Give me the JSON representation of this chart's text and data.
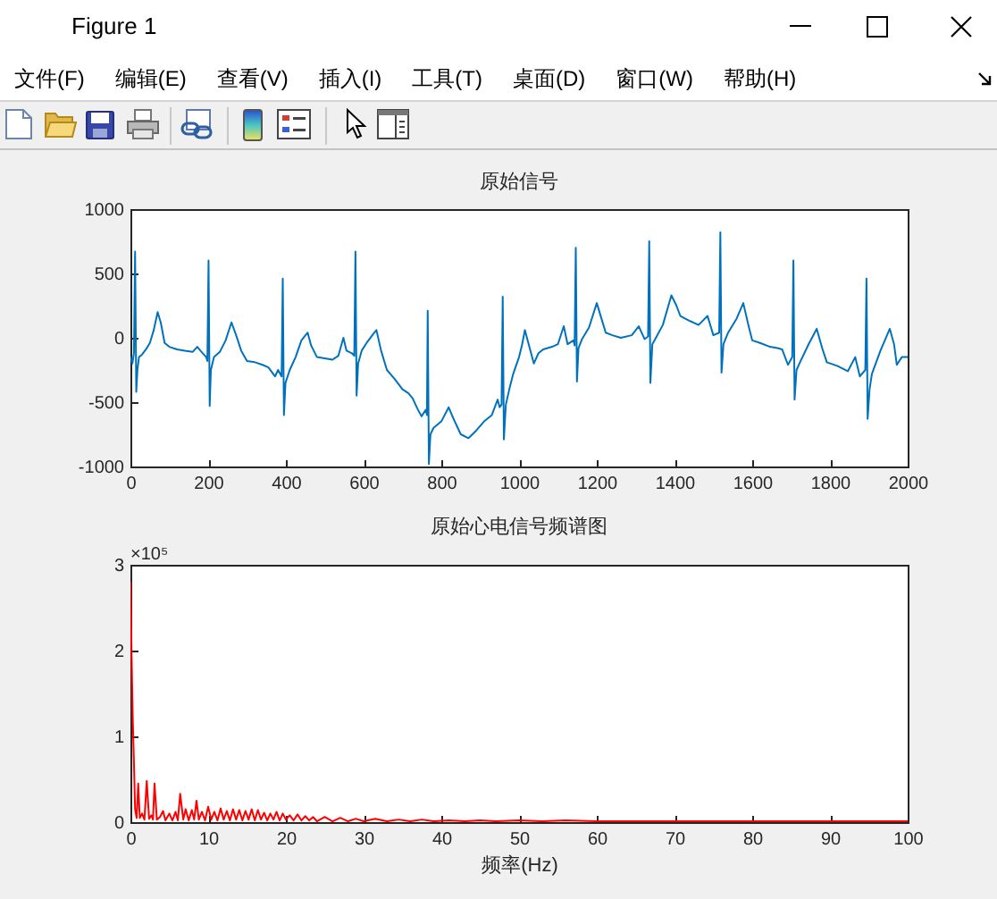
{
  "chart_data": [
    {
      "type": "other",
      "title": "Figure 1",
      "annotations": [
        "文件(F)",
        "编辑(E)",
        "查看(V)",
        "插入(I)",
        "工具(T)",
        "桌面(D)",
        "窗口(W)",
        "帮助(H)"
      ]
    },
    {
      "type": "line",
      "title": "原始信号",
      "x": [
        0,
        5,
        9,
        12,
        15,
        18,
        22,
        30,
        40,
        50,
        60,
        70,
        78,
        88,
        100,
        120,
        140,
        160,
        172,
        180,
        195,
        198,
        201,
        204,
        207,
        215,
        230,
        245,
        260,
        272,
        285,
        300,
        320,
        340,
        355,
        372,
        380,
        389,
        392,
        395,
        399,
        410,
        425,
        440,
        456,
        465,
        480,
        500,
        520,
        535,
        548,
        556,
        570,
        576,
        579,
        582,
        586,
        595,
        610,
        625,
        633,
        645,
        660,
        680,
        700,
        715,
        726,
        740,
        749,
        760,
        763,
        765,
        768,
        772,
        780,
        800,
        819,
        830,
        850,
        870,
        890,
        910,
        930,
        945,
        950,
        955,
        958,
        961,
        966,
        975,
        985,
        1000,
        1008,
        1015,
        1031,
        1038,
        1050,
        1062,
        1085,
        1100,
        1115,
        1125,
        1140,
        1143,
        1146,
        1149,
        1153,
        1162,
        1180,
        1200,
        1212,
        1223,
        1240,
        1262,
        1290,
        1308,
        1323,
        1332,
        1335,
        1338,
        1343,
        1354,
        1370,
        1392,
        1405,
        1415,
        1440,
        1462,
        1485,
        1500,
        1515,
        1518,
        1521,
        1526,
        1538,
        1560,
        1577,
        1590,
        1600,
        1620,
        1646,
        1665,
        1677,
        1692,
        1703,
        1706,
        1709,
        1714,
        1723,
        1745,
        1766,
        1780,
        1792,
        1820,
        1846,
        1865,
        1877,
        1891,
        1894,
        1897,
        1902,
        1908,
        1930,
        1954,
        1965,
        1972,
        1985,
        2000
      ],
      "series": [
        {
          "color": "#0072bd",
          "values": [
            -150,
            -200,
            -120,
            670,
            -420,
            -250,
            -150,
            -130,
            -90,
            -40,
            60,
            200,
            120,
            -40,
            -70,
            -90,
            -100,
            -110,
            -70,
            -100,
            -150,
            -180,
            600,
            -530,
            -250,
            -150,
            -110,
            -20,
            120,
            20,
            -100,
            -180,
            -190,
            -210,
            -230,
            -300,
            -250,
            -300,
            460,
            -600,
            -350,
            -250,
            -150,
            -20,
            40,
            -60,
            -150,
            -160,
            -170,
            -140,
            0,
            -100,
            -120,
            -140,
            670,
            -450,
            -200,
            -100,
            -30,
            30,
            60,
            -100,
            -250,
            -320,
            -400,
            -430,
            -470,
            -560,
            -610,
            -560,
            -600,
            210,
            -980,
            -750,
            -700,
            -650,
            -540,
            -620,
            -750,
            -780,
            -720,
            -650,
            -600,
            -480,
            -540,
            -520,
            320,
            -790,
            -520,
            -400,
            -280,
            -150,
            -50,
            60,
            -120,
            -200,
            -120,
            -90,
            -70,
            -50,
            90,
            -50,
            -20,
            -60,
            700,
            -340,
            -80,
            -10,
            80,
            270,
            150,
            40,
            20,
            0,
            20,
            90,
            -10,
            10,
            750,
            -350,
            -50,
            10,
            100,
            330,
            250,
            170,
            130,
            100,
            170,
            20,
            40,
            820,
            -270,
            -50,
            40,
            150,
            270,
            100,
            -20,
            -40,
            -70,
            -80,
            -90,
            -210,
            -150,
            600,
            -480,
            -250,
            -190,
            -50,
            70,
            -80,
            -190,
            -220,
            -260,
            -150,
            -300,
            -250,
            460,
            -630,
            -400,
            -280,
            -100,
            70,
            -50,
            -210,
            -150,
            -150
          ]
        }
      ],
      "xlim": [
        0,
        2000
      ],
      "xticks": [
        0,
        200,
        400,
        600,
        800,
        1000,
        1200,
        1400,
        1600,
        1800,
        2000
      ],
      "ylim": [
        -1000,
        1000
      ],
      "yticks": [
        -1000,
        -500,
        0,
        500,
        1000
      ]
    },
    {
      "type": "line",
      "title": "原始心电信号频谱图",
      "xlabel": "频率(Hz)",
      "annotations": [
        "×10⁵"
      ],
      "x": [
        0,
        0.15,
        0.3,
        0.45,
        0.6,
        0.8,
        1,
        1.2,
        1.5,
        1.8,
        2.1,
        2.4,
        2.7,
        2.9,
        3.1,
        3.4,
        3.8,
        4.2,
        4.5,
        5,
        5.4,
        5.8,
        6.1,
        6.4,
        6.8,
        7.1,
        7.5,
        7.9,
        8.2,
        8.5,
        8.8,
        9.2,
        9.6,
        10,
        10.4,
        10.8,
        11.2,
        11.6,
        12,
        12.4,
        12.8,
        13.2,
        13.6,
        14,
        14.4,
        14.8,
        15.2,
        15.6,
        16,
        16.4,
        16.8,
        17.2,
        17.6,
        18,
        18.4,
        18.8,
        19.2,
        19.6,
        20,
        20.5,
        21,
        21.5,
        22,
        22.5,
        23,
        23.5,
        24,
        25,
        26,
        27,
        28,
        29,
        30,
        31.5,
        33,
        34.5,
        36,
        37.5,
        39,
        41,
        43,
        45,
        47,
        50,
        53,
        56,
        60,
        64,
        68,
        72,
        76,
        80,
        85,
        90,
        95,
        100
      ],
      "series": [
        {
          "color": "#ff0000",
          "values": [
            2.8,
            1.95,
            1.2,
            0.7,
            0.15,
            0.05,
            0.45,
            0.05,
            0.1,
            0.03,
            0.48,
            0.04,
            0.08,
            0.03,
            0.45,
            0.03,
            0.06,
            0.13,
            0.02,
            0.1,
            0.02,
            0.12,
            0.02,
            0.33,
            0.03,
            0.15,
            0.02,
            0.14,
            0.03,
            0.25,
            0.03,
            0.12,
            0.02,
            0.18,
            0.03,
            0.12,
            0.02,
            0.16,
            0.03,
            0.13,
            0.02,
            0.15,
            0.03,
            0.14,
            0.02,
            0.13,
            0.03,
            0.15,
            0.02,
            0.14,
            0.03,
            0.11,
            0.02,
            0.1,
            0.03,
            0.12,
            0.02,
            0.1,
            0.03,
            0.08,
            0.02,
            0.09,
            0.02,
            0.07,
            0.02,
            0.06,
            0.01,
            0.06,
            0.01,
            0.05,
            0.01,
            0.04,
            0.01,
            0.04,
            0.01,
            0.03,
            0.01,
            0.03,
            0.01,
            0.02,
            0.01,
            0.02,
            0.01,
            0.02,
            0.01,
            0.02,
            0.01,
            0.01,
            0.01,
            0.01,
            0.01,
            0.01,
            0.01,
            0.01,
            0.01,
            0.01
          ]
        }
      ],
      "xlim": [
        0,
        100
      ],
      "xticks": [
        0,
        10,
        20,
        30,
        40,
        50,
        60,
        70,
        80,
        90,
        100
      ],
      "ylim": [
        0,
        3
      ],
      "yticks": [
        0,
        1,
        2,
        3
      ]
    }
  ]
}
